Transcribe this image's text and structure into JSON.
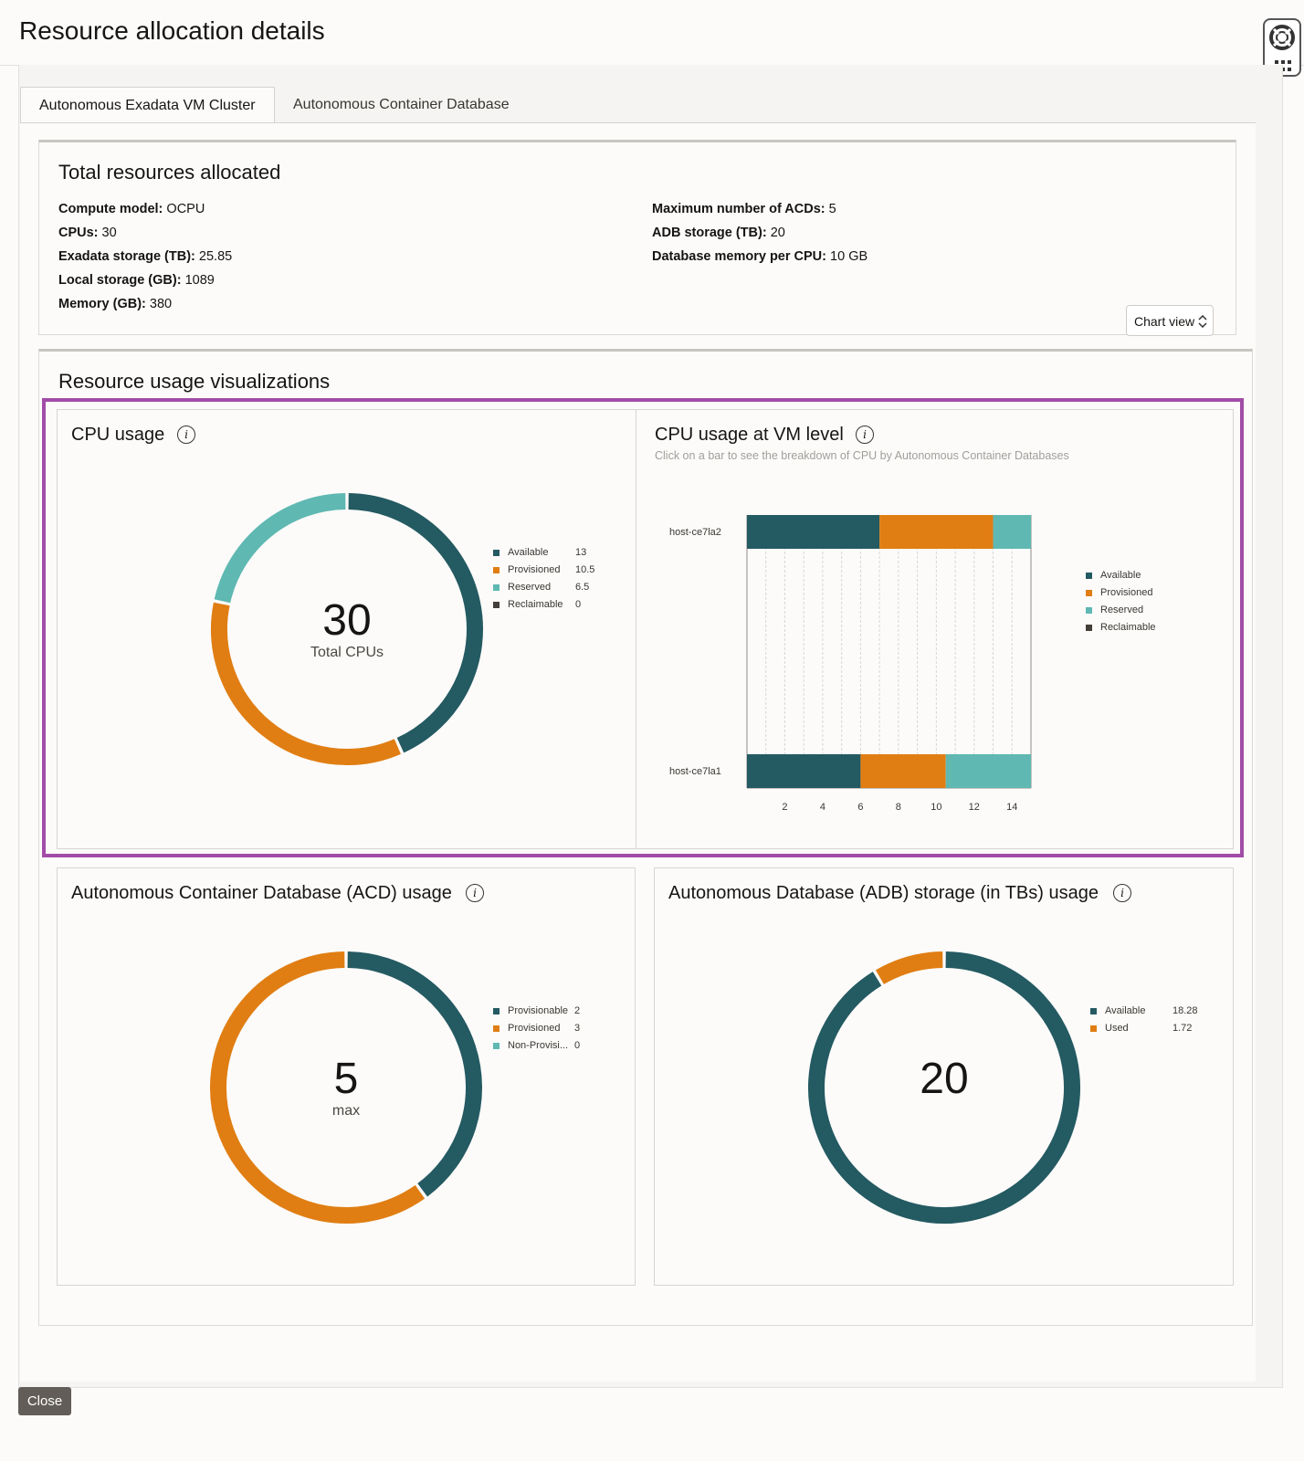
{
  "page": {
    "title": "Resource allocation details"
  },
  "tabs": [
    {
      "label": "Autonomous Exadata VM Cluster",
      "active": true
    },
    {
      "label": "Autonomous Container Database",
      "active": false
    }
  ],
  "total_resources": {
    "title": "Total resources allocated",
    "left": [
      {
        "label": "Compute model:",
        "value": "OCPU"
      },
      {
        "label": "CPUs:",
        "value": "30"
      },
      {
        "label": "Exadata storage (TB):",
        "value": "25.85"
      },
      {
        "label": "Local storage (GB):",
        "value": "1089"
      },
      {
        "label": "Memory (GB):",
        "value": "380"
      }
    ],
    "right": [
      {
        "label": "Maximum number of ACDs:",
        "value": "5"
      },
      {
        "label": "ADB storage (TB):",
        "value": "20"
      },
      {
        "label": "Database memory per CPU:",
        "value": "10 GB"
      }
    ]
  },
  "visualizations": {
    "title": "Resource usage visualizations",
    "view_select": "Chart view"
  },
  "colors": {
    "available": "#245a62",
    "provisioned": "#e07e13",
    "reserved": "#5fb8b2",
    "reclaimable": "#443e39",
    "highlight": "#a24ca8"
  },
  "cpu_usage": {
    "title": "CPU usage",
    "center_value": "30",
    "center_label": "Total CPUs",
    "legend": [
      {
        "label": "Available",
        "value": "13"
      },
      {
        "label": "Provisioned",
        "value": "10.5"
      },
      {
        "label": "Reserved",
        "value": "6.5"
      },
      {
        "label": "Reclaimable",
        "value": "0"
      }
    ]
  },
  "vm_cpu": {
    "title": "CPU usage at VM level",
    "subtitle": "Click on a bar to see the breakdown of CPU by Autonomous Container Databases",
    "legend": [
      {
        "label": "Available"
      },
      {
        "label": "Provisioned"
      },
      {
        "label": "Reserved"
      },
      {
        "label": "Reclaimable"
      }
    ]
  },
  "acd_usage": {
    "title": "Autonomous Container Database (ACD) usage",
    "center_value": "5",
    "center_label": "max",
    "legend": [
      {
        "label": "Provisionable",
        "value": "2"
      },
      {
        "label": "Provisioned",
        "value": "3"
      },
      {
        "label": "Non-Provisi...",
        "value": "0"
      }
    ]
  },
  "adb_storage": {
    "title": "Autonomous Database (ADB) storage (in TBs) usage",
    "center_value": "20",
    "legend": [
      {
        "label": "Available",
        "value": "18.28"
      },
      {
        "label": "Used",
        "value": "1.72"
      }
    ]
  },
  "footer": {
    "close_label": "Close"
  },
  "chart_data": [
    {
      "type": "pie",
      "title": "CPU usage",
      "categories": [
        "Available",
        "Provisioned",
        "Reserved",
        "Reclaimable"
      ],
      "values": [
        13,
        10.5,
        6.5,
        0
      ]
    },
    {
      "type": "bar",
      "orientation": "horizontal",
      "stacked": true,
      "title": "CPU usage at VM level",
      "categories": [
        "host-ce7la2",
        "host-ce7la1"
      ],
      "series": [
        {
          "name": "Available",
          "values": [
            7,
            6
          ]
        },
        {
          "name": "Provisioned",
          "values": [
            6,
            4.5
          ]
        },
        {
          "name": "Reserved",
          "values": [
            2,
            4.5
          ]
        },
        {
          "name": "Reclaimable",
          "values": [
            0,
            0
          ]
        }
      ],
      "xlim": [
        0,
        15
      ],
      "xticks": [
        "2",
        "4",
        "6",
        "8",
        "10",
        "12",
        "14"
      ],
      "grid": true,
      "legend_position": "right"
    },
    {
      "type": "pie",
      "title": "Autonomous Container Database (ACD) usage",
      "categories": [
        "Provisionable",
        "Provisioned",
        "Non-Provisi..."
      ],
      "values": [
        2,
        3,
        0
      ]
    },
    {
      "type": "pie",
      "title": "Autonomous Database (ADB) storage (in TBs) usage",
      "categories": [
        "Available",
        "Used"
      ],
      "values": [
        18.28,
        1.72
      ]
    }
  ]
}
